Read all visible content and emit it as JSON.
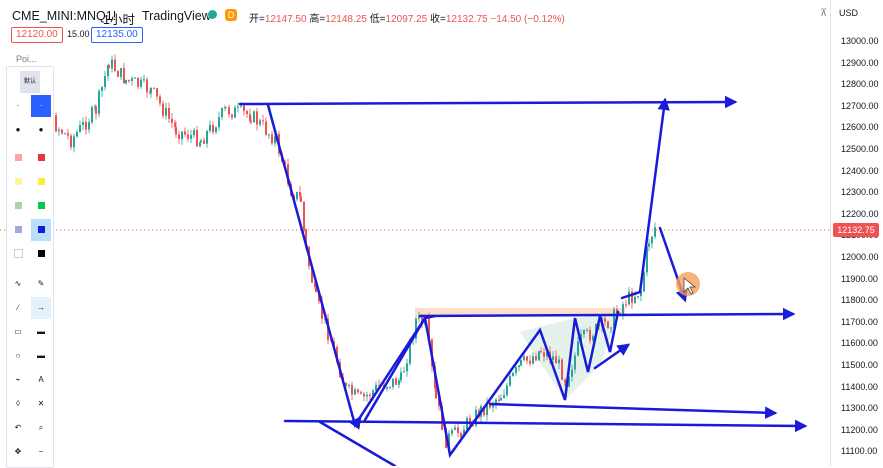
{
  "header": {
    "symbol": "CME_MINI:MNQ1!",
    "interval": "1小时",
    "source": "TradingView",
    "delay_badge": "D",
    "open_label": "开=",
    "open": "12147.50",
    "high_label": "高=",
    "high": "12148.25",
    "low_label": "低=",
    "low": "12097.25",
    "close_label": "收=",
    "close": "12132.75",
    "change": "−14.50 (−0.12%)",
    "bid": "12120.00",
    "spread": "15.00",
    "ask": "12135.00",
    "collapse": "⊼"
  },
  "toolbar": {
    "title": "Poi...",
    "preset_label": "默认"
  },
  "price_axis": {
    "currency": "USD",
    "ticks": [
      "13000.00",
      "12900.00",
      "12800.00",
      "12700.00",
      "12600.00",
      "12500.00",
      "12400.00",
      "12300.00",
      "12200.00",
      "12100.00",
      "12000.00",
      "11900.00",
      "11800.00",
      "11700.00",
      "11600.00",
      "11500.00",
      "11400.00",
      "11300.00",
      "11200.00",
      "11100.00"
    ],
    "last_price": "12132.75"
  },
  "colors": {
    "up": "#26a69a",
    "down": "#ef5350",
    "drawing": "#1a1ad9",
    "highlight": "#f4a460"
  }
}
